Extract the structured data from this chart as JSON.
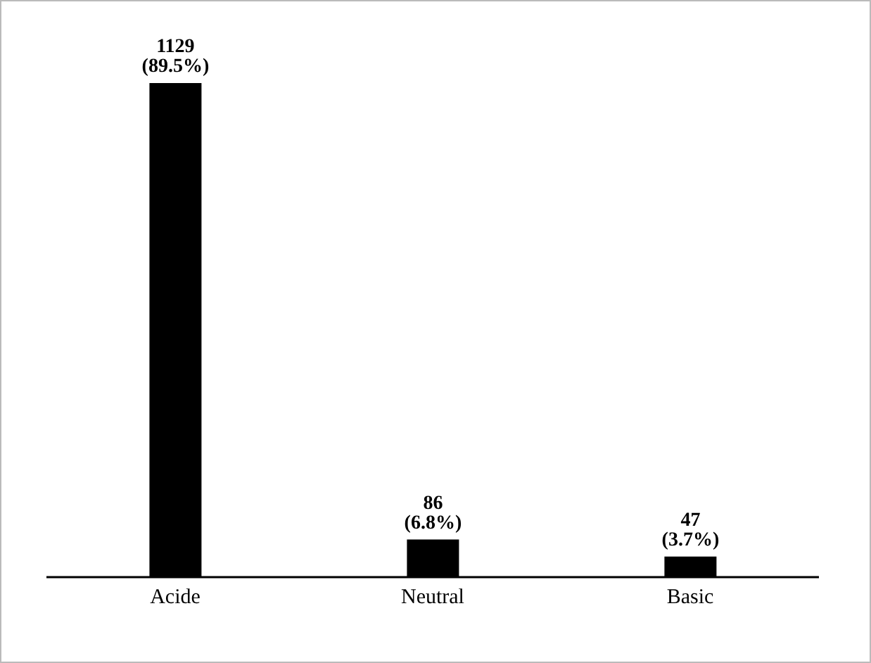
{
  "chart_data": {
    "type": "bar",
    "categories": [
      "Acide",
      "Neutral",
      "Basic"
    ],
    "values": [
      1129,
      86,
      47
    ],
    "value_labels": [
      "1129 (89.5%)",
      "86 (6.8%)",
      "47 (3.7%)"
    ],
    "color": "#000000",
    "grid": false,
    "legend": false
  }
}
